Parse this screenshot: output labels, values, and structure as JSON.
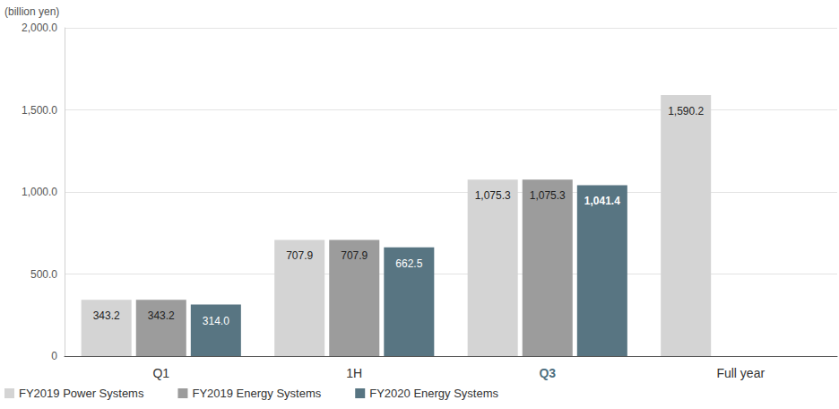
{
  "chart_data": {
    "type": "bar",
    "ylabel": "(billion yen)",
    "categories": [
      "Q1",
      "1H",
      "Q3",
      "Full year"
    ],
    "series": [
      {
        "name": "FY2019 Power Systems",
        "color": "#d4d4d4",
        "values": [
          343.2,
          707.9,
          1075.3,
          1590.2
        ],
        "value_labels": [
          "343.2",
          "707.9",
          "1,075.3",
          "1,590.2"
        ]
      },
      {
        "name": "FY2019 Energy Systems",
        "color": "#9c9c9c",
        "values": [
          343.2,
          707.9,
          1075.3,
          null
        ],
        "value_labels": [
          "343.2",
          "707.9",
          "1,075.3",
          null
        ]
      },
      {
        "name": "FY2020 Energy Systems",
        "color": "#587582",
        "values": [
          314.0,
          662.5,
          1041.4,
          null
        ],
        "value_labels": [
          "314.0",
          "662.5",
          "1,041.4",
          null
        ]
      }
    ],
    "ylim": [
      0,
      2000
    ],
    "yticks": [
      {
        "value": 0,
        "label": "0"
      },
      {
        "value": 500,
        "label": "500.0"
      },
      {
        "value": 1000,
        "label": "1,000.0"
      },
      {
        "value": 1500,
        "label": "1,500.0"
      },
      {
        "value": 2000,
        "label": "2,000.0"
      }
    ],
    "grid": true,
    "data_labels": true,
    "legend": "bottom-left"
  }
}
